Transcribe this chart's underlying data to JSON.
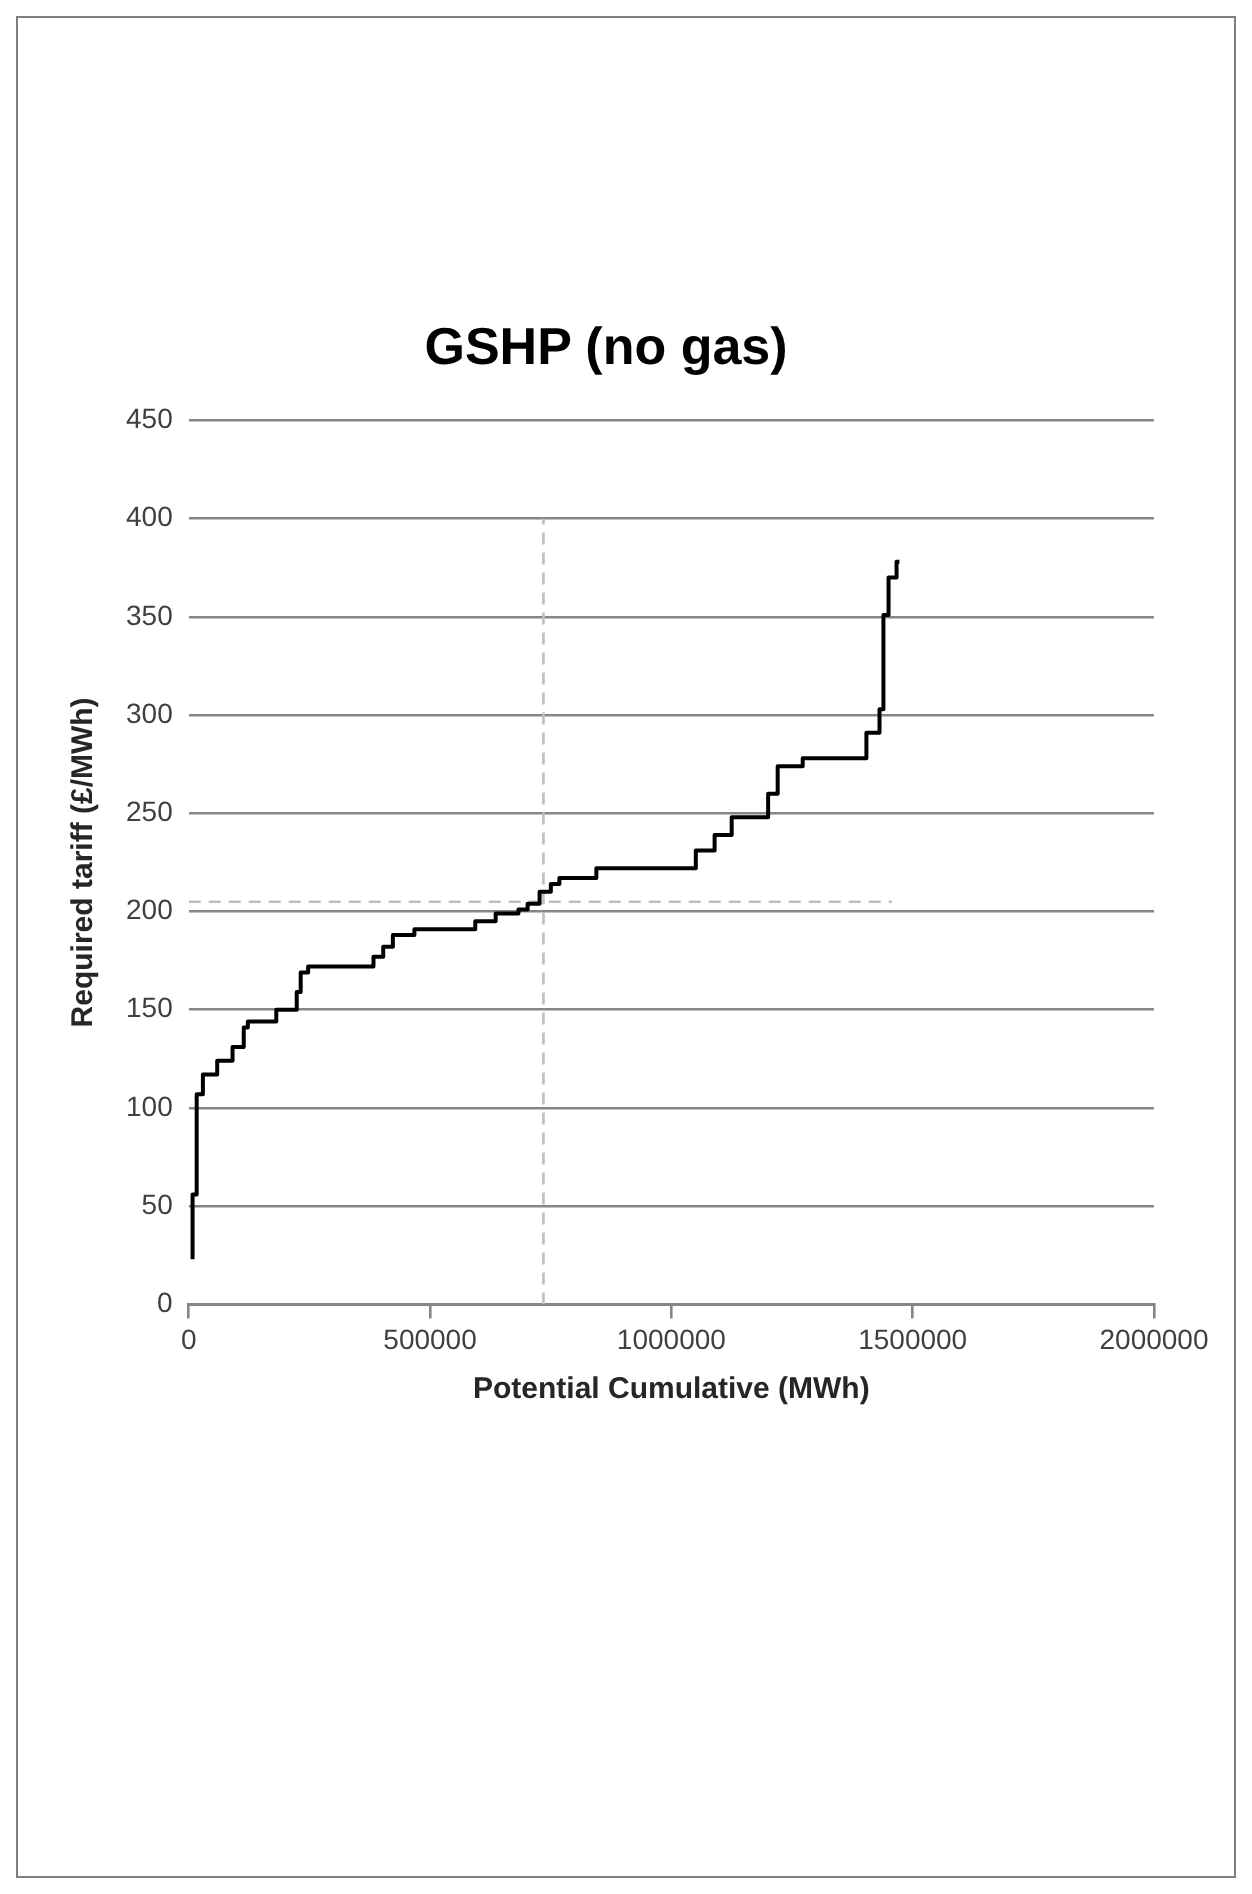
{
  "chart_data": {
    "type": "step",
    "title": "GSHP (no gas)",
    "xlabel": "Potential Cumulative (MWh)",
    "ylabel": "Required tariff (£/MWh)",
    "xlim": [
      0,
      2000000
    ],
    "xticks": [
      0,
      500000,
      1000000,
      1500000,
      2000000
    ],
    "ylim": [
      0,
      450
    ],
    "yticks": [
      0,
      50,
      100,
      150,
      200,
      250,
      300,
      350,
      400,
      450
    ],
    "grid": "y",
    "legend": false,
    "series": [
      {
        "type": "step",
        "color": "#000000",
        "line_style": "solid",
        "x": [
          8000,
          16500,
          29400,
          59000,
          90800,
          114000,
          122500,
          181400,
          223800,
          232000,
          247400,
          382800,
          403000,
          423000,
          467600,
          593700,
          636000,
          683200,
          702200,
          727000,
          750300,
          768000,
          844600,
          1050700,
          1089600,
          1125000,
          1200500,
          1220300,
          1272200,
          1404100,
          1431300,
          1439400,
          1450000,
          1466600,
          1472600
        ],
        "values": [
          23,
          56,
          107,
          117,
          124,
          131,
          141,
          144,
          150,
          159,
          169,
          172,
          177,
          182,
          188,
          191,
          195,
          199,
          201,
          204,
          210,
          214,
          217,
          222,
          231,
          239,
          248,
          260,
          274,
          278,
          291,
          303,
          351,
          370,
          378
        ]
      },
      {
        "type": "line",
        "color": "#bfbfbf",
        "line_style": "dashed",
        "x": [
          735000,
          735000
        ],
        "values": [
          0,
          400
        ]
      },
      {
        "type": "line",
        "color": "#bfbfbf",
        "line_style": "dashed",
        "x": [
          0,
          1457000
        ],
        "values": [
          205,
          205
        ]
      }
    ]
  }
}
